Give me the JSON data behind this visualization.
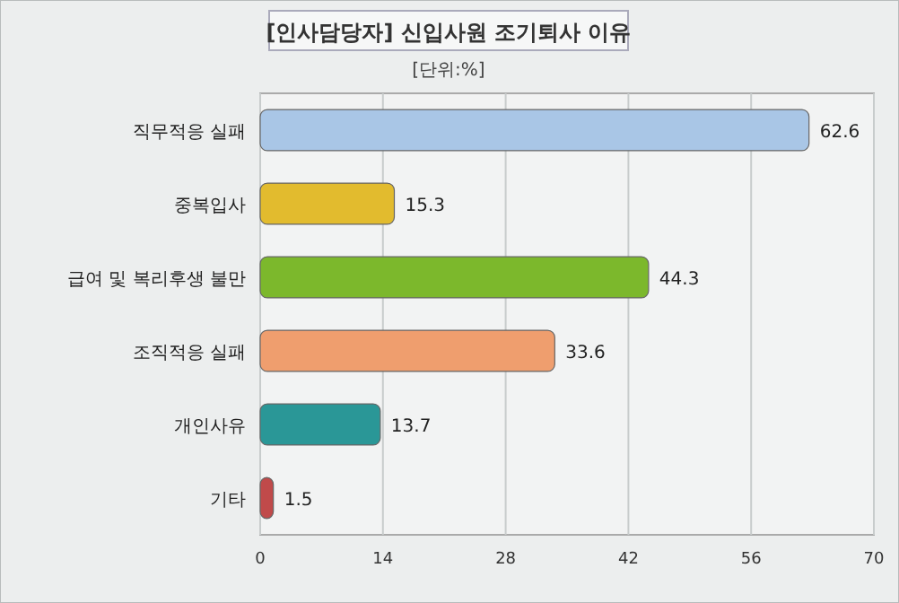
{
  "chart_data": {
    "type": "bar",
    "orientation": "horizontal",
    "title": "[인사담당자] 신입사원 조기퇴사 이유",
    "subtitle": "[단위:%]",
    "categories": [
      "직무적응 실패",
      "중복입사",
      "급여 및 복리후생 불만",
      "조직적응 실패",
      "개인사유",
      "기타"
    ],
    "values": [
      62.6,
      15.3,
      44.3,
      33.6,
      13.7,
      1.5
    ],
    "colors": [
      "#a9c6e6",
      "#e2bb2e",
      "#7cb82c",
      "#ef9e6e",
      "#2a9797",
      "#c04a4a"
    ],
    "xlim": [
      0,
      70
    ],
    "xticks": [
      0,
      14,
      28,
      42,
      56,
      70
    ],
    "grid": "x",
    "data_labels": true
  }
}
